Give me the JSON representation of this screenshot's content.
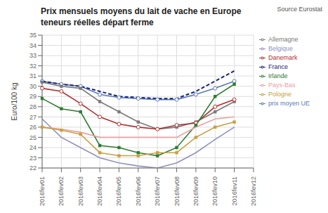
{
  "chart_data": {
    "type": "line",
    "title": "Prix mensuels moyens du lait de vache en Europe",
    "subtitle": "teneurs réelles départ ferme",
    "annotations": [
      "Source Eurostat"
    ],
    "y_label": "Euro/100 kg",
    "categories": [
      "2016fev01",
      "2016fev02",
      "2016fev03",
      "2016fev04",
      "2016fev05",
      "2016fev06",
      "2016fev07",
      "2016fev08",
      "2016fev09",
      "2016fev10",
      "2016fev11",
      "2016fev12"
    ],
    "ylim": [
      22,
      35
    ],
    "yticks": [
      22,
      23,
      24,
      25,
      26,
      27,
      28,
      29,
      30,
      31,
      32,
      33,
      34,
      35
    ],
    "grid": true,
    "legend": "upper right",
    "series": [
      {
        "name": "prix moyen UE",
        "color": "#5a7ab5",
        "marker": "circle",
        "line_style": "solid",
        "values": [
          30.5,
          30.2,
          30.0,
          29.2,
          28.9,
          28.8,
          28.7,
          28.7,
          29.2,
          29.8,
          30.5,
          null
        ]
      },
      {
        "name": "Allemagne",
        "color": "#7a7a7a",
        "marker": "square",
        "line_style": "solid",
        "values": [
          30.4,
          30.0,
          29.8,
          28.5,
          27.5,
          26.5,
          25.8,
          26.0,
          26.5,
          27.5,
          28.5,
          null
        ]
      },
      {
        "name": "Belgique",
        "color": "#9090c0",
        "marker": "none",
        "line_style": "solid",
        "values": [
          26.8,
          25.0,
          24.0,
          23.0,
          22.5,
          22.2,
          22.0,
          22.5,
          23.5,
          24.8,
          26.0,
          null
        ]
      },
      {
        "name": "Danemark",
        "color": "#b03030",
        "marker": "circle",
        "line_style": "solid",
        "values": [
          29.8,
          29.5,
          28.3,
          27.0,
          26.3,
          26.0,
          25.8,
          26.2,
          26.4,
          28.0,
          28.7,
          null
        ]
      },
      {
        "name": "France",
        "color": "#1a237e",
        "marker": "none",
        "line_style": "dashed",
        "values": [
          30.5,
          30.2,
          30.0,
          29.5,
          29.0,
          28.9,
          28.8,
          28.8,
          29.5,
          30.5,
          31.5,
          null
        ]
      },
      {
        "name": "Irlande",
        "color": "#2e7d32",
        "marker": "square",
        "line_style": "solid",
        "values": [
          28.8,
          27.8,
          27.5,
          24.2,
          24.0,
          23.5,
          23.2,
          24.0,
          26.2,
          29.0,
          30.2,
          null
        ]
      },
      {
        "name": "Pays-Bas",
        "color": "#e8a0a0",
        "marker": "none",
        "line_style": "solid",
        "values": [
          26.0,
          25.8,
          25.5,
          25.0,
          25.0,
          25.0,
          25.0,
          25.0,
          26.0,
          26.8,
          27.0,
          null
        ]
      },
      {
        "name": "Pologne",
        "color": "#c8a040",
        "marker": "square",
        "line_style": "solid",
        "values": [
          26.0,
          25.7,
          25.3,
          23.5,
          23.2,
          23.2,
          23.5,
          23.5,
          25.0,
          26.0,
          26.5,
          null
        ]
      }
    ]
  }
}
